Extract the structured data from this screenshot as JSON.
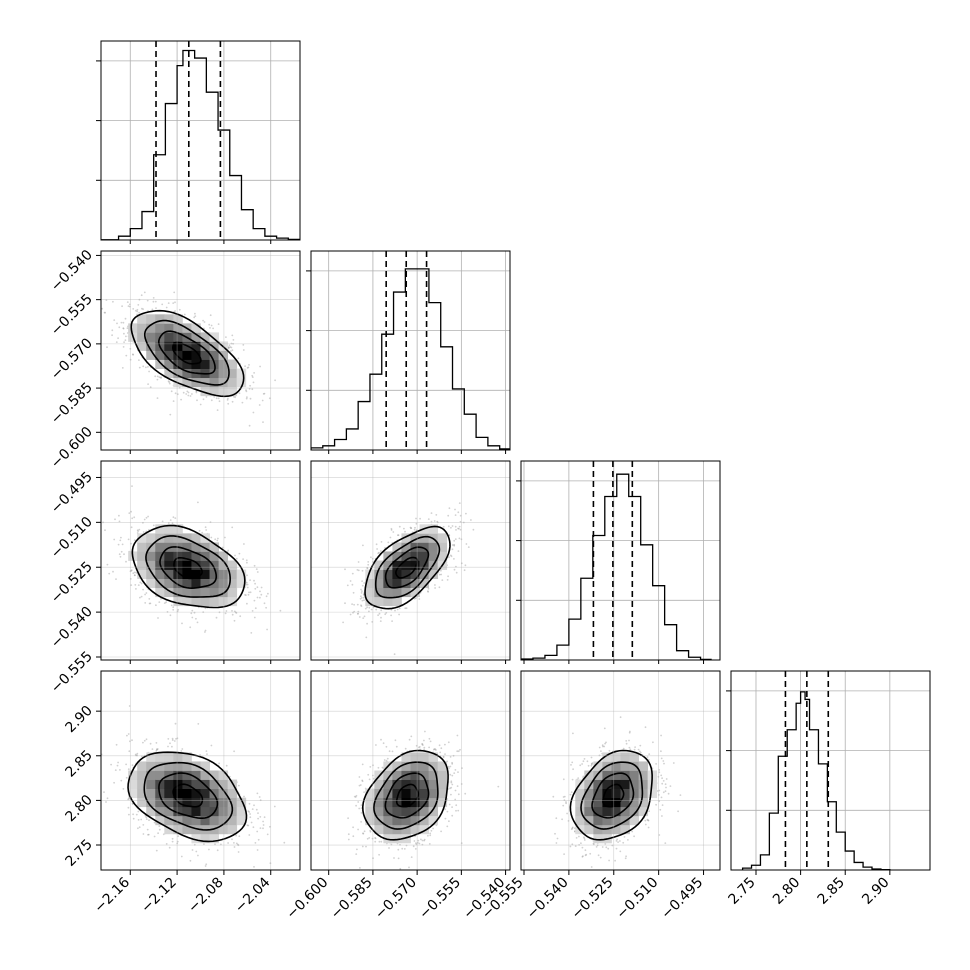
{
  "chart_data": {
    "type": "corner",
    "parameters": [
      {
        "id": "p0",
        "ticks": [
          -2.16,
          -2.12,
          -2.08,
          -2.04
        ],
        "tick_labels": [
          "−2.16",
          "−2.12",
          "−2.08",
          "−2.04"
        ],
        "range": [
          -2.185,
          -2.015
        ],
        "quantiles": [
          -2.138,
          -2.11,
          -2.083
        ]
      },
      {
        "id": "p1",
        "ticks": [
          -0.6,
          -0.585,
          -0.57,
          -0.555,
          -0.54
        ],
        "tick_labels": [
          "−0.600",
          "−0.585",
          "−0.570",
          "−0.555",
          "−0.540"
        ],
        "range": [
          -0.606,
          -0.5385
        ],
        "quantiles": [
          -0.5805,
          -0.5737,
          -0.5668
        ]
      },
      {
        "id": "p2",
        "ticks": [
          -0.555,
          -0.54,
          -0.525,
          -0.51,
          -0.495
        ],
        "tick_labels": [
          "−0.555",
          "−0.540",
          "−0.525",
          "−0.510",
          "−0.495"
        ],
        "range": [
          -0.556,
          -0.4895
        ],
        "quantiles": [
          -0.5318,
          -0.5253,
          -0.5188
        ]
      },
      {
        "id": "p3",
        "ticks": [
          2.75,
          2.8,
          2.85,
          2.9
        ],
        "tick_labels": [
          "2.75",
          "2.80",
          "2.85",
          "2.90"
        ],
        "range": [
          2.722,
          2.945
        ],
        "quantiles": [
          2.783,
          2.807,
          2.831
        ]
      }
    ],
    "histograms": [
      {
        "param": "p0",
        "bin_edges": [
          -2.185,
          -2.17,
          -2.16,
          -2.15,
          -2.14,
          -2.13,
          -2.12,
          -2.115,
          -2.105,
          -2.095,
          -2.085,
          -2.075,
          -2.065,
          -2.055,
          -2.045,
          -2.035,
          -2.025,
          -2.015
        ],
        "counts": [
          0.1,
          2,
          6,
          15,
          45,
          72,
          92,
          100,
          96,
          78,
          58,
          34,
          16,
          6,
          2,
          1,
          0.3
        ],
        "max": 100
      },
      {
        "param": "p1",
        "bin_edges": [
          -0.606,
          -0.602,
          -0.598,
          -0.594,
          -0.59,
          -0.586,
          -0.582,
          -0.578,
          -0.574,
          -0.57,
          -0.566,
          -0.562,
          -0.558,
          -0.554,
          -0.55,
          -0.546,
          -0.542,
          -0.5385
        ],
        "counts": [
          1,
          2,
          5,
          10,
          23,
          36,
          55,
          75,
          86,
          86,
          70,
          49,
          29,
          17,
          6,
          2,
          0.5
        ],
        "max": 90
      },
      {
        "param": "p2",
        "bin_edges": [
          -0.556,
          -0.552,
          -0.548,
          -0.544,
          -0.54,
          -0.536,
          -0.532,
          -0.528,
          -0.524,
          -0.52,
          -0.516,
          -0.512,
          -0.508,
          -0.504,
          -0.5,
          -0.496,
          -0.4925
        ],
        "counts": [
          0.5,
          1,
          2.5,
          8,
          22,
          44,
          67,
          88,
          100,
          88,
          62,
          40,
          19,
          5,
          1.5,
          0.3
        ],
        "max": 102
      },
      {
        "param": "p3",
        "bin_edges": [
          2.735,
          2.745,
          2.755,
          2.765,
          2.775,
          2.785,
          2.795,
          2.8,
          2.805,
          2.81,
          2.82,
          2.83,
          2.84,
          2.85,
          2.86,
          2.87,
          2.88,
          2.89,
          2.9
        ],
        "counts": [
          1,
          2.5,
          8,
          30,
          60,
          74,
          88,
          94,
          90,
          74,
          56,
          36,
          20,
          10,
          4,
          1.5,
          0.5,
          0.2
        ],
        "max": 100
      }
    ],
    "pairs": [
      {
        "x": "p0",
        "y": "p1",
        "center": [
          -2.112,
          -0.5733
        ],
        "sigma": [
          0.024,
          0.0072
        ],
        "rho": -0.6
      },
      {
        "x": "p0",
        "y": "p2",
        "center": [
          -2.111,
          -0.5253
        ],
        "sigma": [
          0.024,
          0.0068
        ],
        "rho": -0.35
      },
      {
        "x": "p1",
        "y": "p2",
        "center": [
          -0.5735,
          -0.5252
        ],
        "sigma": [
          0.0072,
          0.0068
        ],
        "rho": 0.58
      },
      {
        "x": "p0",
        "y": "p3",
        "center": [
          -2.111,
          2.805
        ],
        "sigma": [
          0.025,
          0.025
        ],
        "rho": -0.35
      },
      {
        "x": "p1",
        "y": "p3",
        "center": [
          -0.5733,
          2.805
        ],
        "sigma": [
          0.0072,
          0.025
        ],
        "rho": 0.3
      },
      {
        "x": "p2",
        "y": "p3",
        "center": [
          -0.5252,
          2.805
        ],
        "sigma": [
          0.0068,
          0.025
        ],
        "rho": 0.3
      }
    ],
    "contour_levels_sigma": [
      0.5,
      1.0,
      1.5,
      2.0
    ],
    "grid": true,
    "colors": {
      "hist": "#000000",
      "quantile": "#000000",
      "scatter": "#9a9a9a",
      "grid": "#b0b0b0",
      "spine": "#000000",
      "density_dark": "#000000"
    }
  }
}
